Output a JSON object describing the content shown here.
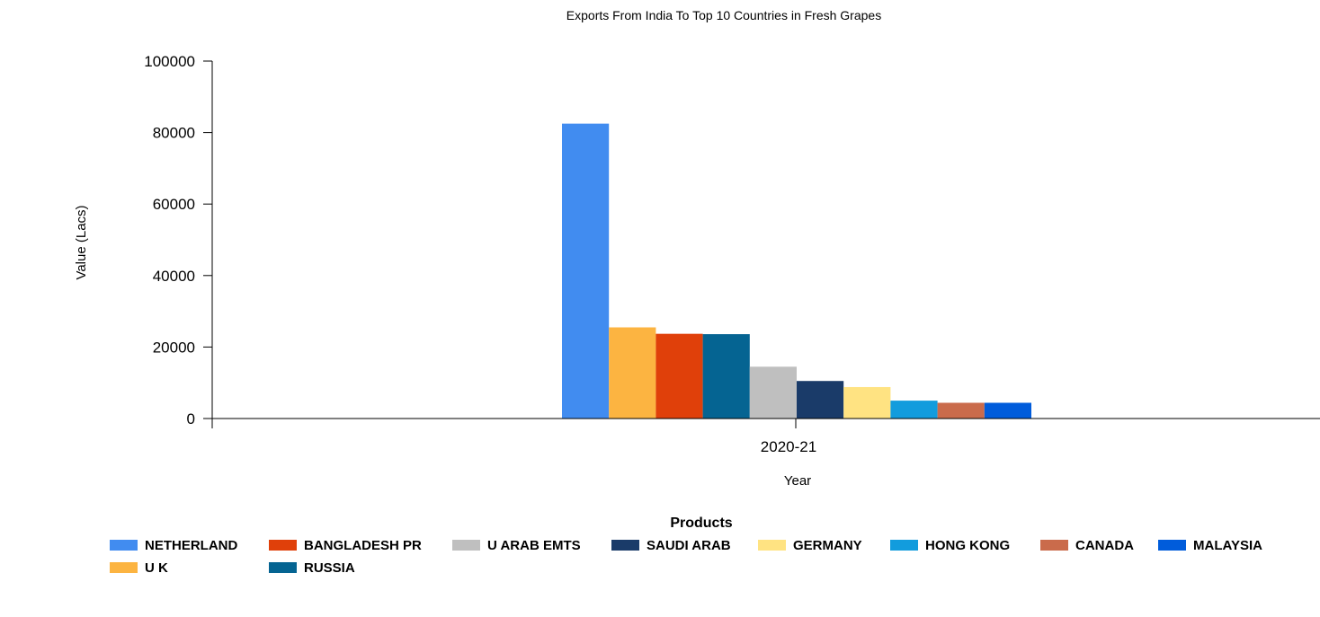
{
  "chart_data": {
    "type": "bar",
    "title": "Exports From India To Top 10 Countries in Fresh Grapes",
    "xlabel": "Year",
    "ylabel": "Value (Lacs)",
    "ylim": [
      0,
      100000
    ],
    "yticks": [
      0,
      20000,
      40000,
      60000,
      80000,
      100000
    ],
    "yticks_label": [
      "0",
      "20000",
      "40000",
      "60000",
      "80000",
      "100000"
    ],
    "categories": [
      "2020-21"
    ],
    "legend_title": "Products",
    "legend_position": "bottom",
    "grid": false,
    "series": [
      {
        "name": "NETHERLAND",
        "color": "#418CF0",
        "values": [
          82500
        ]
      },
      {
        "name": "U K",
        "color": "#FCB441",
        "values": [
          25500
        ]
      },
      {
        "name": "BANGLADESH PR",
        "color": "#E0400A",
        "values": [
          23700
        ]
      },
      {
        "name": "RUSSIA",
        "color": "#056492",
        "values": [
          23600
        ]
      },
      {
        "name": "U ARAB EMTS",
        "color": "#BFBFBF",
        "values": [
          14500
        ]
      },
      {
        "name": "SAUDI ARAB",
        "color": "#1A3B69",
        "values": [
          10500
        ]
      },
      {
        "name": "GERMANY",
        "color": "#FFE382",
        "values": [
          8800
        ]
      },
      {
        "name": "HONG KONG",
        "color": "#129CDD",
        "values": [
          5000
        ]
      },
      {
        "name": "CANADA",
        "color": "#CA6B4B",
        "values": [
          4400
        ]
      },
      {
        "name": "MALAYSIA",
        "color": "#005CDB",
        "values": [
          4400
        ]
      }
    ]
  }
}
